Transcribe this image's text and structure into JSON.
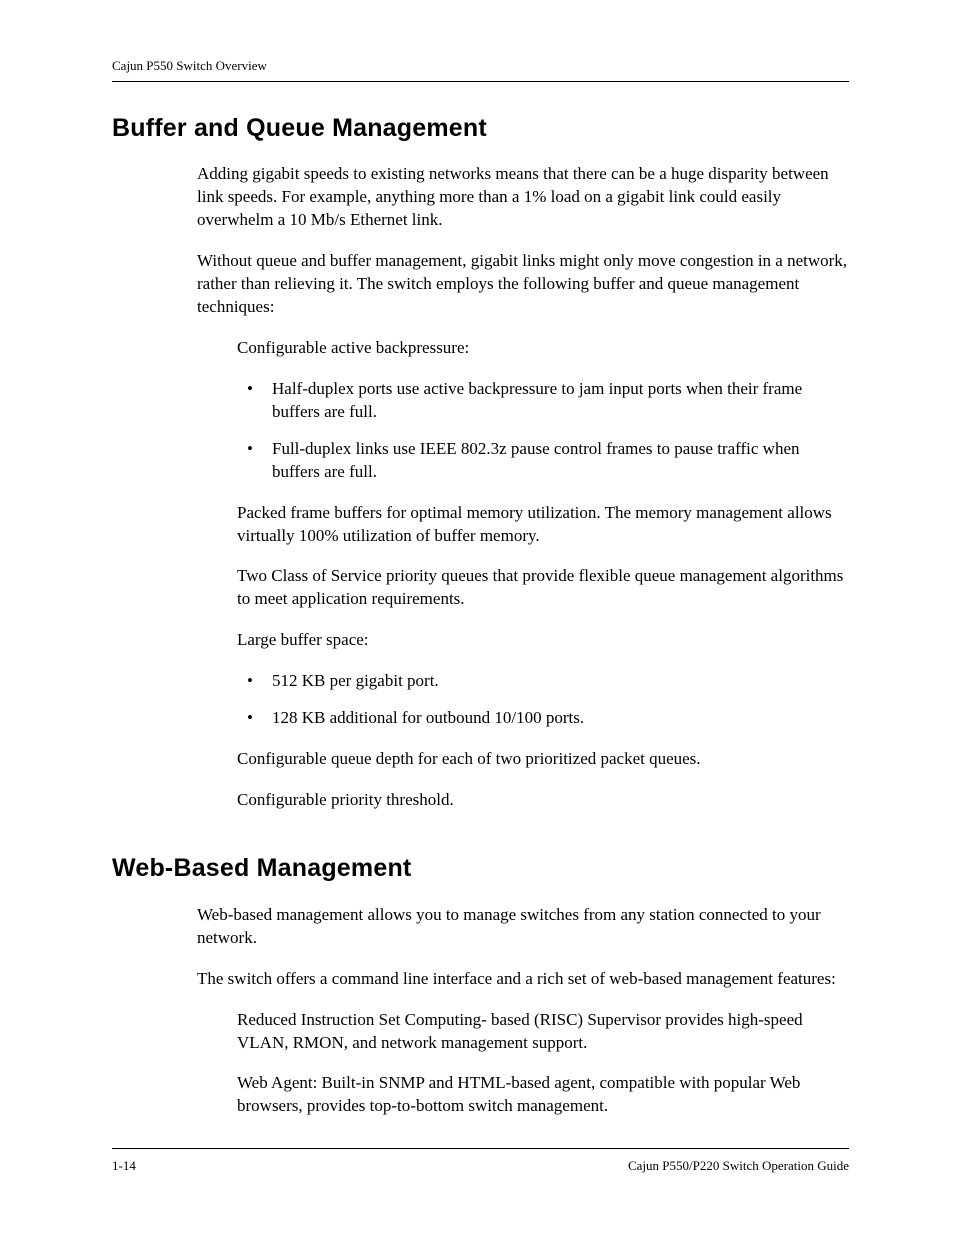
{
  "header": {
    "running_title": "Cajun P550 Switch Overview"
  },
  "section1": {
    "title": "Buffer and Queue Management",
    "p1": "Adding gigabit speeds to existing networks means that there can be a huge disparity between link speeds. For example, anything more than a 1% load on a gigabit link could easily overwhelm a 10 Mb/s Ethernet link.",
    "p2": "Without queue and buffer management, gigabit links might only move congestion in a network, rather than relieving it. The switch employs the following buffer and queue management techniques:",
    "sub1_intro": "Configurable active backpressure:",
    "sub1_bullets": [
      "Half-duplex ports use active backpressure to jam input ports when their frame buffers are full.",
      "Full-duplex links use IEEE 802.3z pause control frames to pause traffic when buffers are full."
    ],
    "sub2": "Packed frame buffers for optimal memory utilization. The memory management allows virtually 100% utilization of buffer memory.",
    "sub3": "Two Class of Service priority queues that provide flexible queue management algorithms to meet application requirements.",
    "sub4_intro": "Large buffer space:",
    "sub4_bullets": [
      "512 KB per gigabit port.",
      "128 KB additional for outbound 10/100 ports."
    ],
    "sub5": "Configurable queue depth for each of two prioritized packet queues.",
    "sub6": "Configurable priority threshold."
  },
  "section2": {
    "title": "Web-Based Management",
    "p1": "Web-based management allows you to manage switches from any station connected to your network.",
    "p2": "The switch offers a command line interface and a rich set of web-based management features:",
    "items": [
      "Reduced Instruction Set Computing- based (RISC) Supervisor provides high-speed VLAN, RMON, and network management support.",
      "Web Agent: Built-in SNMP and HTML-based agent, compatible with popular Web browsers, provides top-to-bottom switch management."
    ]
  },
  "footer": {
    "page_number": "1-14",
    "guide_title": "Cajun P550/P220 Switch Operation Guide"
  }
}
